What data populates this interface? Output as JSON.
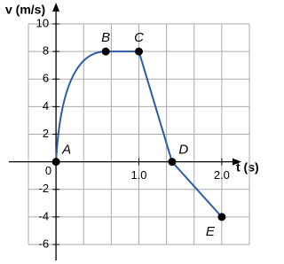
{
  "chart_data": {
    "type": "line",
    "xlabel": "t (s)",
    "ylabel": "v (m/s)",
    "x": [
      0,
      0.6,
      1.0,
      1.4,
      2.0
    ],
    "series": [
      {
        "values": [
          0,
          8,
          8,
          0,
          -4
        ],
        "color": "#2a5aa8"
      }
    ],
    "point_labels": [
      "A",
      "B",
      "C",
      "D",
      "E"
    ],
    "xlim": [
      -0.333,
      2.333
    ],
    "ylim": [
      -6,
      10
    ],
    "xticks": [
      0,
      {
        "value": 1,
        "label": "1.0"
      },
      {
        "value": 2,
        "label": "2.0"
      }
    ],
    "yticks": [
      -6,
      -4,
      -2,
      2,
      4,
      6,
      8,
      10
    ],
    "grid": true
  }
}
